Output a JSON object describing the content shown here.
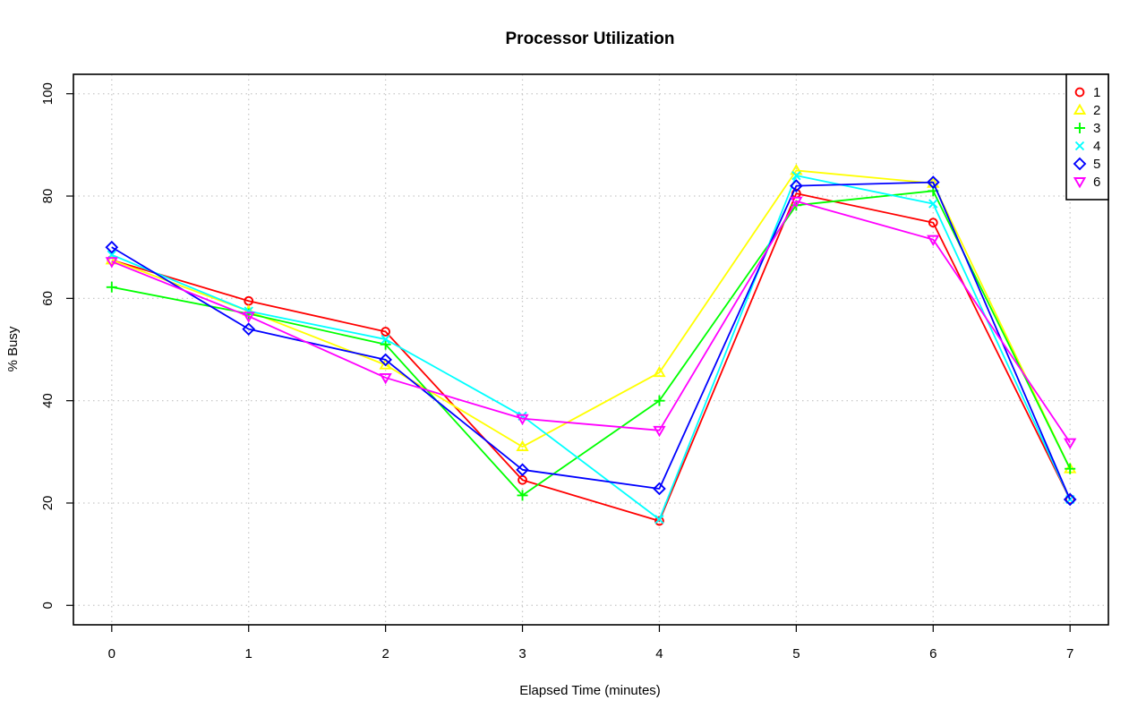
{
  "chart_data": {
    "type": "line",
    "title": "Processor Utilization",
    "xlabel": "Elapsed Time (minutes)",
    "ylabel": "% Busy",
    "x": [
      0,
      1,
      2,
      3,
      4,
      5,
      6,
      7
    ],
    "x_ticks": [
      "0",
      "1",
      "2",
      "3",
      "4",
      "5",
      "6",
      "7"
    ],
    "y_ticks": [
      "0",
      "20",
      "40",
      "60",
      "80",
      "100"
    ],
    "xlim": [
      -0.28,
      7.28
    ],
    "ylim": [
      -3.8,
      103.8
    ],
    "grid": true,
    "legend_position": "top-right",
    "series": [
      {
        "name": "1",
        "color": "#ff0000",
        "marker": "circle",
        "values": [
          67.5,
          59.5,
          53.5,
          24.5,
          16.5,
          80.5,
          74.8,
          20.7
        ]
      },
      {
        "name": "2",
        "color": "#ffff00",
        "marker": "triangle-up",
        "values": [
          67.5,
          57.5,
          47.0,
          31.0,
          45.5,
          85.0,
          82.5,
          26.7
        ]
      },
      {
        "name": "3",
        "color": "#00ff00",
        "marker": "plus",
        "values": [
          62.2,
          57.0,
          51.0,
          21.5,
          40.0,
          78.2,
          81.0,
          26.7
        ]
      },
      {
        "name": "4",
        "color": "#00ffff",
        "marker": "cross",
        "values": [
          68.5,
          57.5,
          52.0,
          37.0,
          16.8,
          84.0,
          78.5,
          20.7
        ]
      },
      {
        "name": "5",
        "color": "#0000ff",
        "marker": "diamond",
        "values": [
          70.0,
          54.0,
          48.0,
          26.5,
          22.8,
          82.0,
          82.7,
          20.7
        ]
      },
      {
        "name": "6",
        "color": "#ff00ff",
        "marker": "triangle-down",
        "values": [
          67.2,
          56.5,
          44.5,
          36.5,
          34.2,
          79.0,
          71.5,
          31.8
        ]
      }
    ]
  }
}
